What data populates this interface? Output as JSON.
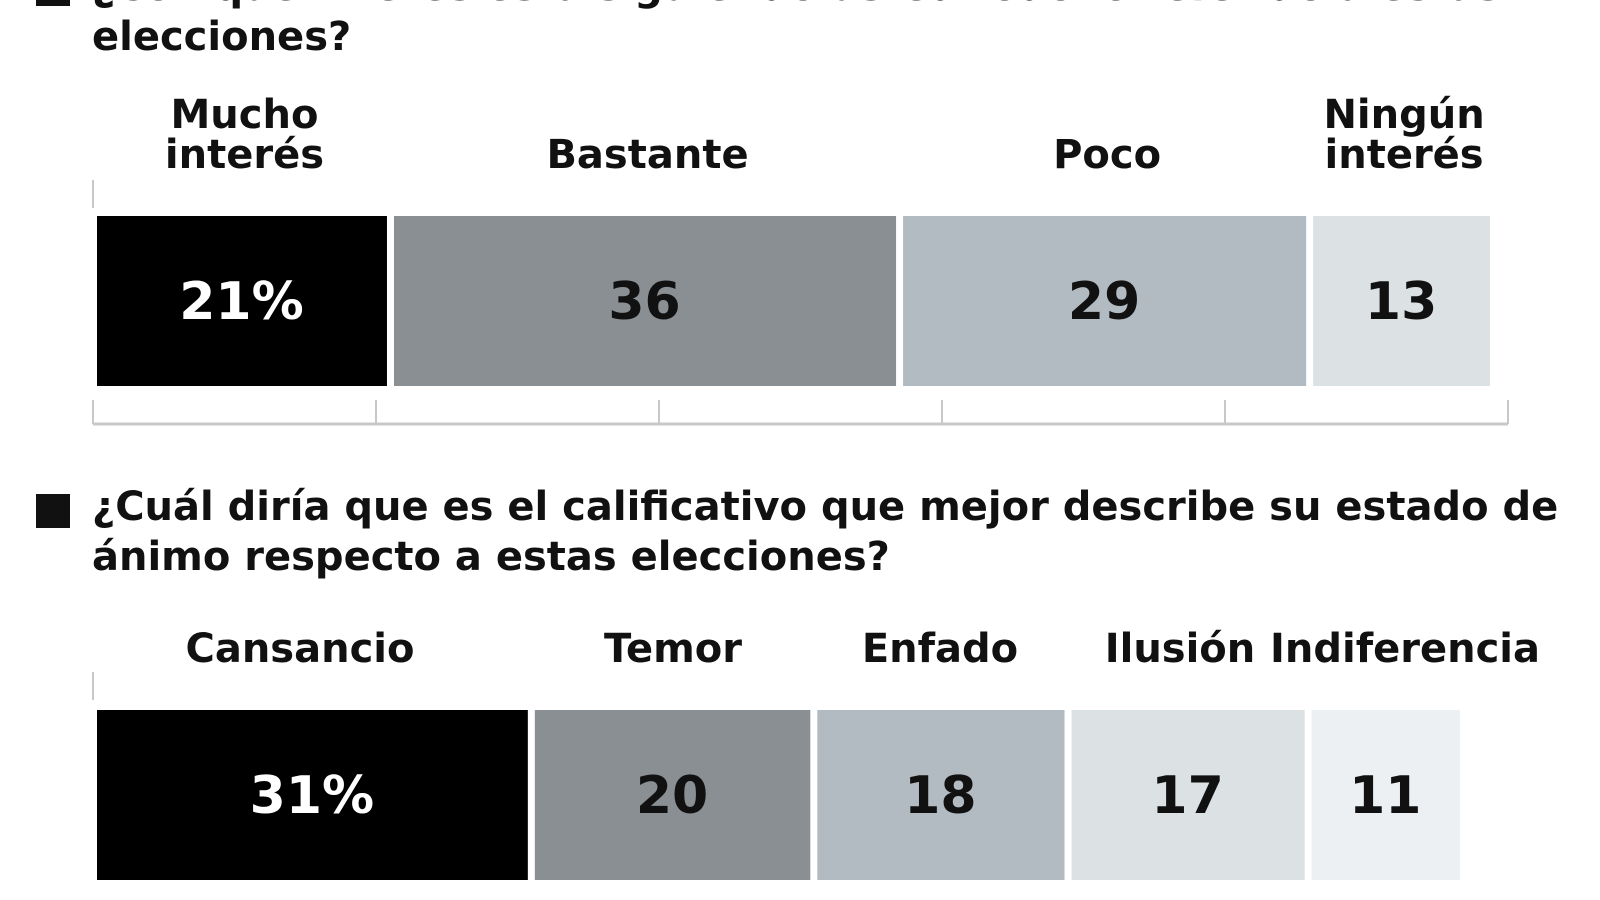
{
  "q1": {
    "question": "¿Con qué interés está siguiendo usted todo lo referido a estas elecciones?"
  },
  "q2": {
    "question": "¿Cuál diría que es el calificativo que mejor describe su estado de ánimo respecto a estas elecciones?"
  },
  "chart_data": [
    {
      "type": "bar",
      "orientation": "horizontal-stacked",
      "title": "¿Con qué interés está siguiendo usted todo lo referido a estas elecciones?",
      "unit": "%",
      "categories": [
        [
          "Mucho",
          "interés"
        ],
        [
          "Bastante"
        ],
        [
          "Poco"
        ],
        [
          "Ningún",
          "interés"
        ]
      ],
      "values": [
        21,
        36,
        29,
        13
      ],
      "value_labels": [
        "21%",
        "36",
        "29",
        "13"
      ],
      "colors": [
        "#000000",
        "#8a8f94",
        "#b3bbc2",
        "#dce1e4"
      ],
      "label_colors": [
        "#ffffff",
        "#111111",
        "#111111",
        "#111111"
      ],
      "xlim": [
        0,
        100
      ],
      "tick_step": 20
    },
    {
      "type": "bar",
      "orientation": "horizontal-stacked",
      "title": "¿Cuál diría que es el calificativo que mejor describe su estado de ánimo respecto a estas elecciones?",
      "unit": "%",
      "categories": [
        [
          "Cansancio"
        ],
        [
          "Temor"
        ],
        [
          "Enfado"
        ],
        [
          "Ilusión"
        ],
        [
          "Indiferencia"
        ]
      ],
      "values": [
        31,
        20,
        18,
        17,
        11
      ],
      "value_labels": [
        "31%",
        "20",
        "18",
        "17",
        "11"
      ],
      "colors": [
        "#000000",
        "#8a8f94",
        "#b3bbc2",
        "#dce1e4",
        "#edf0f2"
      ],
      "label_colors": [
        "#ffffff",
        "#111111",
        "#111111",
        "#111111",
        "#111111"
      ],
      "xlim": [
        0,
        100
      ],
      "tick_step": 20
    }
  ]
}
